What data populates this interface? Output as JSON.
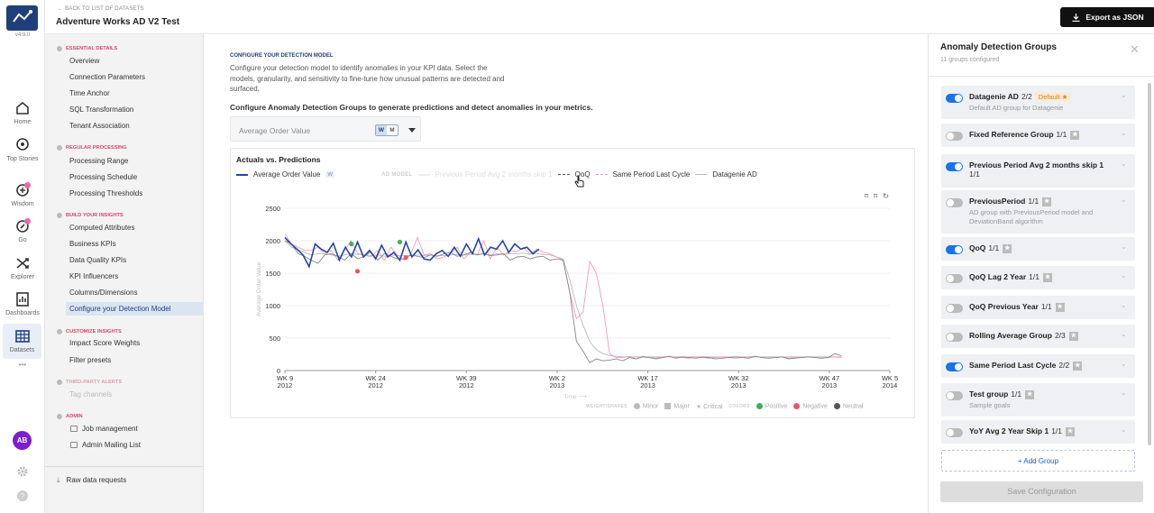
{
  "app": {
    "version": "v4.9.0",
    "avatar_initials": "AB",
    "brand_color": "#1f3f7a"
  },
  "rail": {
    "items": [
      {
        "label": "Home",
        "icon": "home-icon"
      },
      {
        "label": "Top Stories",
        "icon": "stories-icon"
      },
      {
        "label": "Wisdom",
        "icon": "wisdom-icon"
      },
      {
        "label": "Go",
        "icon": "go-icon"
      },
      {
        "label": "Explorer",
        "icon": "explorer-icon"
      },
      {
        "label": "Dashboards",
        "icon": "dashboards-icon"
      },
      {
        "label": "Datasets",
        "icon": "datasets-icon"
      }
    ],
    "more": "•••"
  },
  "header": {
    "back": "BACK TO LIST OF DATASETS",
    "title": "Adventure Works AD V2 Test",
    "export": "Export as JSON"
  },
  "sidebar": {
    "sec_essential": "ESSENTIAL DETAILS",
    "essential": [
      "Overview",
      "Connection Parameters",
      "Time Anchor",
      "SQL Transformation",
      "Tenant Association"
    ],
    "sec_regular": "REGULAR PROCESSING",
    "regular": [
      "Processing Range",
      "Processing Schedule",
      "Processing Thresholds"
    ],
    "sec_build": "BUILD YOUR INSIGHTS",
    "build": [
      "Computed Attributes",
      "Business KPIs",
      "Data Quality KPIs",
      "KPI Influencers",
      "Columns/Dimensions",
      "Configure your Detection Model"
    ],
    "sec_customize": "CUSTOMIZE INSIGHTS",
    "customize": [
      "Impact Score Weights",
      "Filter presets"
    ],
    "sec_thirdparty": "THIRD-PARTY ALERTS",
    "thirdparty": [
      "Tag channels"
    ],
    "sec_admin": "ADMIN",
    "admin": [
      "Job management",
      "Admin Mailing List"
    ],
    "raw": "Raw data requests"
  },
  "main": {
    "config_title": "CONFIGURE YOUR DETECTION MODEL",
    "config_desc": "Configure your detection model to identify anomalies in your KPI data. Select the models, granularity, and sensitivity to fine-tune how unusual patterns are detected and surfaced.",
    "question": "Configure Anomaly Detection Groups to generate predictions and detect anomalies in your metrics.",
    "kpi_value": "Average Order Value",
    "gran_w": "W",
    "gran_m": "M",
    "chart_title": "Actuals vs. Predictions",
    "legend": {
      "actual": "Average Order Value",
      "actual_tag": "W",
      "ad_model": "AD MODEL",
      "prevperiod": "Previous Period Avg 2 months skip 1",
      "qoq": "QoQ",
      "spl": "Same Period Last Cycle",
      "dg": "Datagenie AD"
    },
    "weights": {
      "hd": "WEIGHT/SHAPES",
      "minor": "Minor",
      "major": "Major",
      "critical": "Critical"
    },
    "colors": {
      "hd": "COLORS",
      "positive": "Positive",
      "negative": "Negative",
      "neutral": "Neutral"
    }
  },
  "chart_data": {
    "type": "line",
    "xlabel": "Time",
    "ylabel": "Average Order Value",
    "ylim": [
      0,
      2500
    ],
    "yticks": [
      "0",
      "500",
      "1000",
      "1500",
      "2000",
      "2500"
    ],
    "xticks": [
      {
        "wk": "WK 9",
        "yr": "2012",
        "t": 0
      },
      {
        "wk": "WK 24",
        "yr": "2012",
        "t": 15
      },
      {
        "wk": "WK 39",
        "yr": "2012",
        "t": 30
      },
      {
        "wk": "WK 2",
        "yr": "2013",
        "t": 45
      },
      {
        "wk": "WK 17",
        "yr": "2013",
        "t": 60
      },
      {
        "wk": "WK 32",
        "yr": "2013",
        "t": 75
      },
      {
        "wk": "WK 47",
        "yr": "2013",
        "t": 90
      },
      {
        "wk": "WK 5",
        "yr": "2014",
        "t": 100
      }
    ],
    "series": [
      {
        "name": "Average Order Value",
        "color": "#2546a8",
        "values": [
          2050,
          1950,
          1870,
          1780,
          1600,
          1950,
          1870,
          1820,
          1960,
          1700,
          1900,
          1750,
          1980,
          1750,
          1850,
          1720,
          1930,
          1750,
          1820,
          1700,
          1980,
          1750,
          1860,
          1720,
          1700,
          1800,
          1850,
          1760,
          1900,
          1760,
          1950,
          1800,
          2030,
          1780,
          1900,
          1870,
          2000,
          1820,
          1950,
          1870,
          1900,
          1800,
          1870
        ]
      },
      {
        "name": "QoQ",
        "color": "#888888",
        "values": [
          2000,
          1950,
          1800,
          1760,
          1700,
          1650,
          1780,
          1800,
          1760,
          1700,
          1800,
          1720,
          1760,
          1830,
          1700,
          1800,
          1760,
          1720,
          1720,
          1780,
          1760,
          1740,
          1780,
          1760,
          1800,
          1820,
          1760,
          1780,
          1820,
          1780,
          1800,
          1770,
          1780,
          1800,
          1700,
          1750,
          1760,
          1720,
          1750,
          1760,
          1700,
          1720,
          1700,
          1200,
          450,
          300,
          120,
          180,
          150,
          160,
          180,
          150,
          200,
          180,
          210,
          200,
          180,
          200,
          220,
          190,
          210,
          200,
          190,
          210,
          200,
          180,
          190,
          200,
          210,
          200,
          190,
          220,
          200,
          190,
          200,
          210,
          180,
          190,
          200,
          210,
          200,
          190,
          200,
          260,
          230
        ]
      },
      {
        "name": "Same Period Last Cycle",
        "color": "#f29cb6",
        "values": [
          2100,
          1950,
          1900,
          1850,
          1850,
          1900,
          1800,
          1850,
          1700,
          1850,
          2000,
          1800,
          1780,
          1750,
          1850,
          1700,
          1900,
          1780,
          1700,
          1800,
          2050,
          1780,
          1800,
          1720,
          1750,
          1800,
          1900,
          1720,
          1820,
          1780,
          2000,
          1720,
          1900,
          1780,
          1850,
          1830,
          1900,
          1790,
          1870,
          1820,
          1800,
          1750,
          1700,
          1200,
          800,
          900,
          1680,
          1500,
          1000,
          260,
          200,
          200,
          220,
          180,
          220,
          200,
          190,
          210,
          220,
          200,
          200,
          190,
          210,
          200,
          190,
          200,
          210,
          200,
          190,
          200,
          210,
          220,
          200,
          190,
          200,
          210,
          190,
          200,
          200,
          210,
          200,
          190,
          200,
          210,
          200
        ]
      },
      {
        "name": "Datagenie AD",
        "color": "#bbbbbb",
        "values": [
          2000,
          1900,
          1860,
          1820,
          1780,
          1800,
          1800,
          1780,
          1760,
          1780,
          1800,
          1790,
          1780,
          1770,
          1780,
          1760,
          1780,
          1770,
          1770,
          1770,
          1780,
          1770,
          1780,
          1770,
          1770,
          1780,
          1790,
          1780,
          1790,
          1790,
          1800,
          1780,
          1800,
          1790,
          1800,
          1800,
          1810,
          1790,
          1800,
          1790,
          1780,
          1750,
          1720,
          1400,
          1000,
          700,
          450,
          320,
          260,
          230,
          220,
          210,
          210,
          210,
          210,
          210,
          210,
          210,
          210,
          210,
          210,
          210,
          210,
          210,
          210,
          210,
          210,
          210,
          210,
          210,
          210,
          210,
          210,
          210,
          210,
          210,
          210,
          210,
          210,
          210,
          210,
          210,
          210,
          210,
          210
        ]
      }
    ],
    "markers": [
      {
        "t": 11,
        "v": 1950,
        "color": "#3fae5a"
      },
      {
        "t": 12,
        "v": 1530,
        "color": "#e8556d"
      },
      {
        "t": 19,
        "v": 1980,
        "color": "#3fae5a"
      },
      {
        "t": 20,
        "v": 1740,
        "color": "#e8556d"
      }
    ]
  },
  "panel": {
    "title": "Anomaly Detection Groups",
    "subtitle": "11 groups configured",
    "groups": [
      {
        "name": "Datagenie AD",
        "count": "2/2",
        "on": true,
        "default": "Default",
        "desc": "Default AD group for Datagenie"
      },
      {
        "name": "Fixed Reference Group",
        "count": "1/1",
        "on": false,
        "desc": ""
      },
      {
        "name": "Previous Period Avg 2 months skip 1",
        "count": "1/1",
        "on": true,
        "desc": ""
      },
      {
        "name": "PreviousPeriod",
        "count": "1/1",
        "on": false,
        "desc": "AD group with PreviousPeriod model and DeviationBand algorithm"
      },
      {
        "name": "QoQ",
        "count": "1/1",
        "on": true,
        "desc": ""
      },
      {
        "name": "QoQ Lag 2 Year",
        "count": "1/1",
        "on": false,
        "desc": ""
      },
      {
        "name": "QoQ Previous Year",
        "count": "1/1",
        "on": false,
        "desc": ""
      },
      {
        "name": "Rolling Average Group",
        "count": "2/3",
        "on": false,
        "desc": ""
      },
      {
        "name": "Same Period Last Cycle",
        "count": "2/2",
        "on": true,
        "desc": ""
      },
      {
        "name": "Test group",
        "count": "1/1",
        "on": false,
        "desc": "Sample goals"
      },
      {
        "name": "YoY Avg 2 Year Skip 1",
        "count": "1/1",
        "on": false,
        "desc": ""
      }
    ],
    "add": "+ Add Group",
    "save": "Save Configuration"
  }
}
